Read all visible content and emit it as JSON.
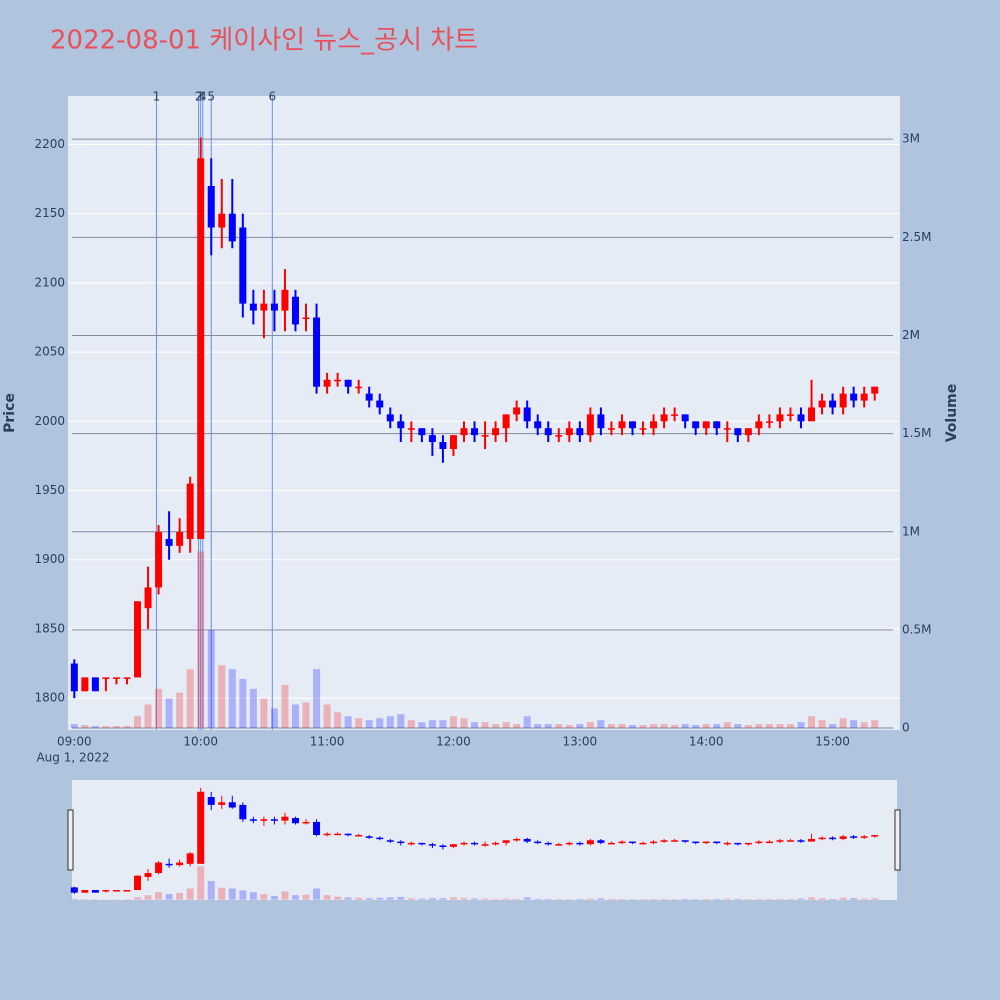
{
  "chart_data": {
    "type": "candlestick",
    "title": "2022-08-01 케이사인 뉴스_공시 차트",
    "y_label": "Price",
    "y2_label": "Volume",
    "x_date_label": "Aug 1, 2022",
    "increasing_color": "#ff0000",
    "decreasing_color": "#0000ff",
    "x": [
      "09:00",
      "09:05",
      "09:10",
      "09:15",
      "09:20",
      "09:25",
      "09:30",
      "09:35",
      "09:40",
      "09:45",
      "09:50",
      "09:55",
      "10:00",
      "10:05",
      "10:10",
      "10:15",
      "10:20",
      "10:25",
      "10:30",
      "10:35",
      "10:40",
      "10:45",
      "10:50",
      "10:55",
      "11:00",
      "11:05",
      "11:10",
      "11:15",
      "11:20",
      "11:25",
      "11:30",
      "11:35",
      "11:40",
      "11:45",
      "11:50",
      "11:55",
      "12:00",
      "12:05",
      "12:10",
      "12:15",
      "12:20",
      "12:25",
      "12:30",
      "12:35",
      "12:40",
      "12:45",
      "12:50",
      "12:55",
      "13:00",
      "13:05",
      "13:10",
      "13:15",
      "13:20",
      "13:25",
      "13:30",
      "13:35",
      "13:40",
      "13:45",
      "13:50",
      "13:55",
      "14:00",
      "14:05",
      "14:10",
      "14:15",
      "14:20",
      "14:25",
      "14:30",
      "14:35",
      "14:40",
      "14:45",
      "14:50",
      "14:55",
      "15:00",
      "15:05",
      "15:10",
      "15:15",
      "15:20"
    ],
    "open": [
      1825,
      1805,
      1815,
      1815,
      1815,
      1815,
      1815,
      1865,
      1880,
      1915,
      1910,
      1915,
      1915,
      2170,
      2140,
      2150,
      2140,
      2085,
      2080,
      2085,
      2080,
      2090,
      2075,
      2075,
      2025,
      2030,
      2030,
      2025,
      2020,
      2015,
      2005,
      2000,
      1995,
      1995,
      1990,
      1985,
      1980,
      1990,
      1995,
      1990,
      1990,
      1995,
      2005,
      2010,
      2000,
      1995,
      1990,
      1990,
      1995,
      1990,
      2005,
      1995,
      1995,
      2000,
      1995,
      1995,
      2000,
      2005,
      2005,
      2000,
      1995,
      2000,
      1995,
      1995,
      1990,
      1995,
      2000,
      2000,
      2005,
      2005,
      2000,
      2010,
      2015,
      2010,
      2020,
      2015,
      2020
    ],
    "high": [
      1828,
      1815,
      1815,
      1815,
      1815,
      1815,
      1870,
      1895,
      1925,
      1935,
      1930,
      1960,
      2205,
      2190,
      2175,
      2175,
      2150,
      2095,
      2095,
      2095,
      2110,
      2095,
      2085,
      2085,
      2035,
      2035,
      2030,
      2030,
      2025,
      2020,
      2010,
      2005,
      2000,
      1995,
      1995,
      1990,
      1990,
      2000,
      2000,
      2000,
      2000,
      2005,
      2015,
      2015,
      2005,
      2000,
      1995,
      2000,
      2000,
      2010,
      2010,
      2000,
      2005,
      2000,
      2000,
      2005,
      2010,
      2010,
      2005,
      2000,
      2000,
      2000,
      2000,
      1995,
      1995,
      2005,
      2005,
      2010,
      2010,
      2010,
      2030,
      2020,
      2020,
      2025,
      2025,
      2025,
      2025
    ],
    "low": [
      1800,
      1805,
      1805,
      1805,
      1810,
      1810,
      1815,
      1850,
      1875,
      1900,
      1905,
      1905,
      1915,
      2120,
      2125,
      2125,
      2075,
      2070,
      2060,
      2065,
      2065,
      2065,
      2065,
      2020,
      2020,
      2025,
      2020,
      2020,
      2010,
      2005,
      1995,
      1985,
      1985,
      1985,
      1975,
      1970,
      1975,
      1985,
      1985,
      1980,
      1985,
      1985,
      2000,
      1995,
      1990,
      1985,
      1985,
      1985,
      1985,
      1985,
      1990,
      1990,
      1990,
      1990,
      1990,
      1990,
      1995,
      2000,
      1995,
      1990,
      1990,
      1990,
      1985,
      1985,
      1985,
      1990,
      1995,
      1995,
      2000,
      1995,
      2000,
      2005,
      2005,
      2005,
      2010,
      2010,
      2015
    ],
    "close": [
      1805,
      1815,
      1805,
      1815,
      1815,
      1815,
      1870,
      1880,
      1920,
      1910,
      1920,
      1955,
      2190,
      2140,
      2150,
      2130,
      2085,
      2080,
      2085,
      2080,
      2095,
      2070,
      2075,
      2025,
      2030,
      2030,
      2025,
      2025,
      2015,
      2010,
      2000,
      1995,
      1995,
      1990,
      1985,
      1980,
      1990,
      1995,
      1990,
      1990,
      1995,
      2005,
      2010,
      2000,
      1995,
      1990,
      1990,
      1995,
      1990,
      2005,
      1995,
      1995,
      2000,
      1995,
      1995,
      2000,
      2005,
      2005,
      2000,
      1995,
      2000,
      1995,
      1995,
      1990,
      1995,
      2000,
      2000,
      2005,
      2005,
      2000,
      2010,
      2015,
      2010,
      2020,
      2015,
      2020,
      2025
    ],
    "volume": [
      20000,
      15000,
      10000,
      10000,
      10000,
      10000,
      60000,
      120000,
      200000,
      150000,
      180000,
      300000,
      900000,
      500000,
      320000,
      300000,
      250000,
      200000,
      150000,
      100000,
      220000,
      120000,
      130000,
      300000,
      120000,
      80000,
      60000,
      50000,
      40000,
      50000,
      60000,
      70000,
      40000,
      30000,
      40000,
      40000,
      60000,
      50000,
      30000,
      30000,
      20000,
      30000,
      20000,
      60000,
      20000,
      20000,
      20000,
      15000,
      20000,
      30000,
      40000,
      20000,
      20000,
      15000,
      15000,
      20000,
      20000,
      15000,
      20000,
      15000,
      20000,
      20000,
      30000,
      20000,
      15000,
      20000,
      20000,
      20000,
      20000,
      30000,
      60000,
      40000,
      20000,
      50000,
      40000,
      30000,
      40000
    ],
    "xlim": [
      "08:57",
      "15:32"
    ],
    "xticks": [
      "09:00",
      "10:00",
      "11:00",
      "12:00",
      "13:00",
      "14:00",
      "15:00"
    ],
    "ylim": [
      1777,
      2235
    ],
    "yticks": [
      1800,
      1850,
      1900,
      1950,
      2000,
      2050,
      2100,
      2150,
      2200
    ],
    "y2lim": [
      -10000,
      3220000
    ],
    "y2ticks": [
      0,
      {
        "value": 500000,
        "label": "0.5M"
      },
      {
        "value": 1000000,
        "label": "1M"
      },
      {
        "value": 1500000,
        "label": "1.5M"
      },
      {
        "value": 2000000,
        "label": "2M"
      },
      {
        "value": 2500000,
        "label": "2.5M"
      },
      {
        "value": 3000000,
        "label": "3M"
      }
    ],
    "annotations": [
      {
        "x": "09:39",
        "label": "1"
      },
      {
        "x": "09:59",
        "label": "2"
      },
      {
        "x": "10:00",
        "label": "3"
      },
      {
        "x": "10:01",
        "label": "4"
      },
      {
        "x": "10:05",
        "label": "5"
      },
      {
        "x": "10:34",
        "label": "6"
      }
    ]
  }
}
